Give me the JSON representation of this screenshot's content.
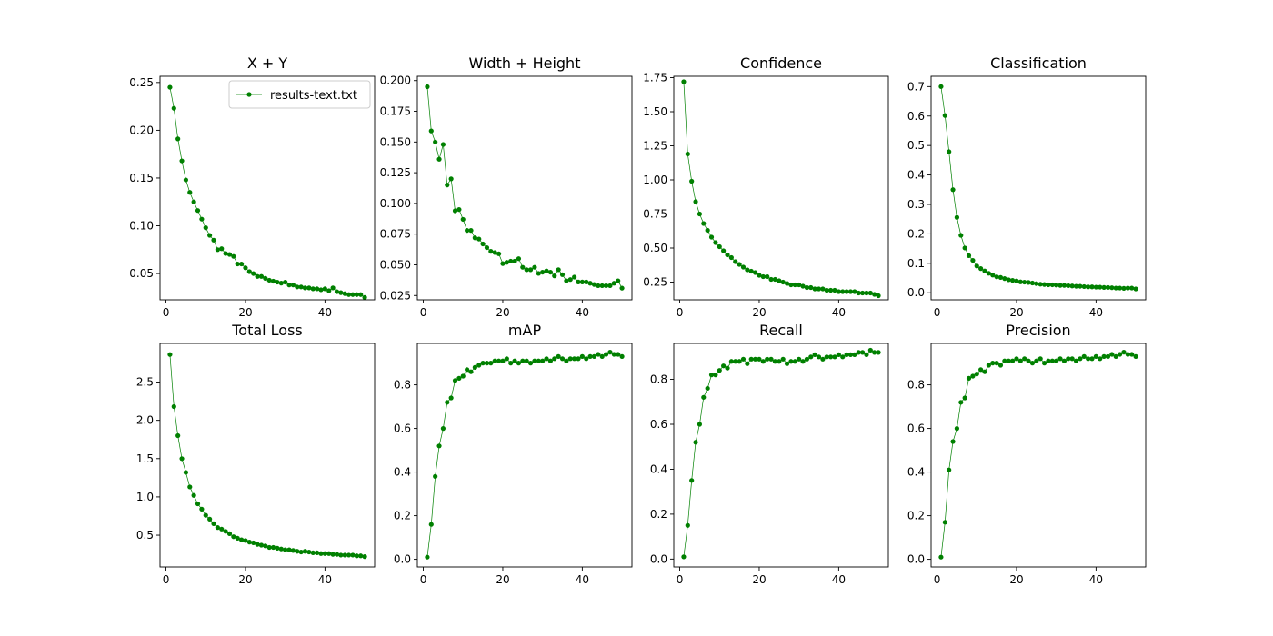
{
  "figure": {
    "legend_label": "results-text.txt",
    "line_color": "#008000",
    "background": "#ffffff"
  },
  "chart_data": [
    {
      "type": "line",
      "title": "X + Y",
      "xlabel": "",
      "ylabel": "",
      "xlim": [
        -1.5,
        52.5
      ],
      "ylim": [
        0.0225,
        0.2565
      ],
      "xticks": [
        0,
        20,
        40
      ],
      "xtick_labels": [
        "0",
        "20",
        "40"
      ],
      "yticks": [
        0.05,
        0.1,
        0.15,
        0.2,
        0.25
      ],
      "ytick_labels": [
        "0.05",
        "0.10",
        "0.15",
        "0.20",
        "0.25"
      ],
      "legend": "top-right",
      "series": [
        {
          "name": "results-text.txt",
          "x_start": 1,
          "values": [
            0.245,
            0.223,
            0.191,
            0.168,
            0.148,
            0.135,
            0.125,
            0.116,
            0.107,
            0.098,
            0.09,
            0.085,
            0.075,
            0.076,
            0.071,
            0.07,
            0.068,
            0.06,
            0.06,
            0.056,
            0.052,
            0.05,
            0.047,
            0.047,
            0.045,
            0.043,
            0.042,
            0.041,
            0.04,
            0.041,
            0.038,
            0.038,
            0.036,
            0.036,
            0.035,
            0.035,
            0.034,
            0.034,
            0.033,
            0.034,
            0.032,
            0.035,
            0.031,
            0.03,
            0.029,
            0.028,
            0.028,
            0.028,
            0.028,
            0.025
          ]
        }
      ]
    },
    {
      "type": "line",
      "title": "Width + Height",
      "xlabel": "",
      "ylabel": "",
      "xlim": [
        -1.5,
        52.5
      ],
      "ylim": [
        0.0215,
        0.2035
      ],
      "xticks": [
        0,
        20,
        40
      ],
      "xtick_labels": [
        "0",
        "20",
        "40"
      ],
      "yticks": [
        0.025,
        0.05,
        0.075,
        0.1,
        0.125,
        0.15,
        0.175,
        0.2
      ],
      "ytick_labels": [
        "0.025",
        "0.050",
        "0.075",
        "0.100",
        "0.125",
        "0.150",
        "0.175",
        "0.200"
      ],
      "series": [
        {
          "name": "results-text.txt",
          "x_start": 1,
          "values": [
            0.195,
            0.159,
            0.15,
            0.136,
            0.148,
            0.115,
            0.12,
            0.094,
            0.095,
            0.087,
            0.078,
            0.078,
            0.072,
            0.071,
            0.067,
            0.064,
            0.061,
            0.06,
            0.059,
            0.051,
            0.052,
            0.053,
            0.053,
            0.055,
            0.048,
            0.046,
            0.046,
            0.048,
            0.043,
            0.044,
            0.045,
            0.044,
            0.041,
            0.046,
            0.042,
            0.037,
            0.038,
            0.04,
            0.036,
            0.036,
            0.036,
            0.035,
            0.034,
            0.033,
            0.033,
            0.033,
            0.033,
            0.035,
            0.037,
            0.031
          ]
        }
      ]
    },
    {
      "type": "line",
      "title": "Confidence",
      "xlabel": "",
      "ylabel": "",
      "xlim": [
        -1.5,
        52.5
      ],
      "ylim": [
        0.12,
        1.76
      ],
      "xticks": [
        0,
        20,
        40
      ],
      "xtick_labels": [
        "0",
        "20",
        "40"
      ],
      "yticks": [
        0.25,
        0.5,
        0.75,
        1.0,
        1.25,
        1.5,
        1.75
      ],
      "ytick_labels": [
        "0.25",
        "0.50",
        "0.75",
        "1.00",
        "1.25",
        "1.50",
        "1.75"
      ],
      "series": [
        {
          "name": "results-text.txt",
          "x_start": 1,
          "values": [
            1.72,
            1.19,
            0.99,
            0.84,
            0.75,
            0.68,
            0.63,
            0.58,
            0.54,
            0.51,
            0.48,
            0.45,
            0.43,
            0.4,
            0.38,
            0.36,
            0.34,
            0.33,
            0.32,
            0.3,
            0.29,
            0.29,
            0.27,
            0.27,
            0.26,
            0.25,
            0.24,
            0.23,
            0.23,
            0.23,
            0.22,
            0.21,
            0.21,
            0.2,
            0.2,
            0.2,
            0.19,
            0.19,
            0.19,
            0.18,
            0.18,
            0.18,
            0.18,
            0.18,
            0.17,
            0.17,
            0.17,
            0.17,
            0.16,
            0.15
          ]
        }
      ]
    },
    {
      "type": "line",
      "title": "Classification",
      "xlabel": "",
      "ylabel": "",
      "xlim": [
        -1.5,
        52.5
      ],
      "ylim": [
        -0.024,
        0.735
      ],
      "xticks": [
        0,
        20,
        40
      ],
      "xtick_labels": [
        "0",
        "20",
        "40"
      ],
      "yticks": [
        0.0,
        0.1,
        0.2,
        0.3,
        0.4,
        0.5,
        0.6,
        0.7
      ],
      "ytick_labels": [
        "0.0",
        "0.1",
        "0.2",
        "0.3",
        "0.4",
        "0.5",
        "0.6",
        "0.7"
      ],
      "series": [
        {
          "name": "results-text.txt",
          "x_start": 1,
          "values": [
            0.7,
            0.602,
            0.479,
            0.35,
            0.256,
            0.195,
            0.152,
            0.126,
            0.11,
            0.091,
            0.082,
            0.074,
            0.066,
            0.06,
            0.054,
            0.052,
            0.048,
            0.044,
            0.042,
            0.04,
            0.037,
            0.036,
            0.035,
            0.033,
            0.031,
            0.029,
            0.028,
            0.027,
            0.027,
            0.026,
            0.025,
            0.025,
            0.024,
            0.023,
            0.022,
            0.022,
            0.021,
            0.02,
            0.02,
            0.019,
            0.019,
            0.018,
            0.018,
            0.017,
            0.016,
            0.016,
            0.015,
            0.016,
            0.016,
            0.013
          ]
        }
      ]
    },
    {
      "type": "line",
      "title": "Total Loss",
      "xlabel": "",
      "ylabel": "",
      "xlim": [
        -1.5,
        52.5
      ],
      "ylim": [
        0.085,
        3.005
      ],
      "xticks": [
        0,
        20,
        40
      ],
      "xtick_labels": [
        "0",
        "20",
        "40"
      ],
      "yticks": [
        0.5,
        1.0,
        1.5,
        2.0,
        2.5
      ],
      "ytick_labels": [
        "0.5",
        "1.0",
        "1.5",
        "2.0",
        "2.5"
      ],
      "series": [
        {
          "name": "results-text.txt",
          "x_start": 1,
          "values": [
            2.86,
            2.18,
            1.8,
            1.5,
            1.32,
            1.13,
            1.02,
            0.91,
            0.84,
            0.76,
            0.71,
            0.65,
            0.6,
            0.58,
            0.55,
            0.52,
            0.48,
            0.46,
            0.44,
            0.43,
            0.41,
            0.4,
            0.38,
            0.37,
            0.36,
            0.34,
            0.34,
            0.33,
            0.32,
            0.31,
            0.31,
            0.3,
            0.29,
            0.28,
            0.29,
            0.28,
            0.27,
            0.27,
            0.26,
            0.26,
            0.26,
            0.25,
            0.25,
            0.24,
            0.24,
            0.24,
            0.24,
            0.23,
            0.23,
            0.22
          ]
        }
      ]
    },
    {
      "type": "line",
      "title": "mAP",
      "xlabel": "",
      "ylabel": "",
      "xlim": [
        -1.5,
        52.5
      ],
      "ylim": [
        -0.035,
        0.99
      ],
      "xticks": [
        0,
        20,
        40
      ],
      "xtick_labels": [
        "0",
        "20",
        "40"
      ],
      "yticks": [
        0.0,
        0.2,
        0.4,
        0.6,
        0.8
      ],
      "ytick_labels": [
        "0.0",
        "0.2",
        "0.4",
        "0.6",
        "0.8"
      ],
      "series": [
        {
          "name": "results-text.txt",
          "x_start": 1,
          "values": [
            0.01,
            0.16,
            0.38,
            0.52,
            0.6,
            0.72,
            0.74,
            0.82,
            0.83,
            0.84,
            0.87,
            0.86,
            0.88,
            0.89,
            0.9,
            0.9,
            0.9,
            0.91,
            0.91,
            0.91,
            0.92,
            0.9,
            0.91,
            0.9,
            0.91,
            0.91,
            0.9,
            0.91,
            0.91,
            0.91,
            0.92,
            0.91,
            0.92,
            0.93,
            0.92,
            0.91,
            0.92,
            0.92,
            0.92,
            0.93,
            0.92,
            0.93,
            0.93,
            0.94,
            0.93,
            0.94,
            0.95,
            0.94,
            0.94,
            0.93
          ]
        }
      ]
    },
    {
      "type": "line",
      "title": "Recall",
      "xlabel": "",
      "ylabel": "",
      "xlim": [
        -1.5,
        52.5
      ],
      "ylim": [
        -0.035,
        0.96
      ],
      "xticks": [
        0,
        20,
        40
      ],
      "xtick_labels": [
        "0",
        "20",
        "40"
      ],
      "yticks": [
        0.0,
        0.2,
        0.4,
        0.6,
        0.8
      ],
      "ytick_labels": [
        "0.0",
        "0.2",
        "0.4",
        "0.6",
        "0.8"
      ],
      "series": [
        {
          "name": "results-text.txt",
          "x_start": 1,
          "values": [
            0.01,
            0.15,
            0.35,
            0.52,
            0.6,
            0.72,
            0.76,
            0.82,
            0.82,
            0.84,
            0.86,
            0.85,
            0.88,
            0.88,
            0.88,
            0.89,
            0.87,
            0.89,
            0.89,
            0.89,
            0.88,
            0.89,
            0.89,
            0.88,
            0.88,
            0.89,
            0.87,
            0.88,
            0.88,
            0.89,
            0.88,
            0.89,
            0.9,
            0.91,
            0.9,
            0.89,
            0.9,
            0.9,
            0.9,
            0.91,
            0.9,
            0.91,
            0.91,
            0.91,
            0.92,
            0.92,
            0.91,
            0.93,
            0.92,
            0.92
          ]
        }
      ]
    },
    {
      "type": "line",
      "title": "Precision",
      "xlabel": "",
      "ylabel": "",
      "xlim": [
        -1.5,
        52.5
      ],
      "ylim": [
        -0.035,
        0.99
      ],
      "xticks": [
        0,
        20,
        40
      ],
      "xtick_labels": [
        "0",
        "20",
        "40"
      ],
      "yticks": [
        0.0,
        0.2,
        0.4,
        0.6,
        0.8
      ],
      "ytick_labels": [
        "0.0",
        "0.2",
        "0.4",
        "0.6",
        "0.8"
      ],
      "series": [
        {
          "name": "results-text.txt",
          "x_start": 1,
          "values": [
            0.01,
            0.17,
            0.41,
            0.54,
            0.6,
            0.72,
            0.74,
            0.83,
            0.84,
            0.85,
            0.87,
            0.86,
            0.89,
            0.9,
            0.9,
            0.89,
            0.91,
            0.91,
            0.91,
            0.92,
            0.91,
            0.92,
            0.91,
            0.9,
            0.91,
            0.92,
            0.9,
            0.91,
            0.91,
            0.91,
            0.92,
            0.91,
            0.92,
            0.92,
            0.91,
            0.92,
            0.93,
            0.92,
            0.92,
            0.93,
            0.92,
            0.93,
            0.93,
            0.94,
            0.93,
            0.94,
            0.95,
            0.94,
            0.94,
            0.93
          ]
        }
      ]
    }
  ]
}
